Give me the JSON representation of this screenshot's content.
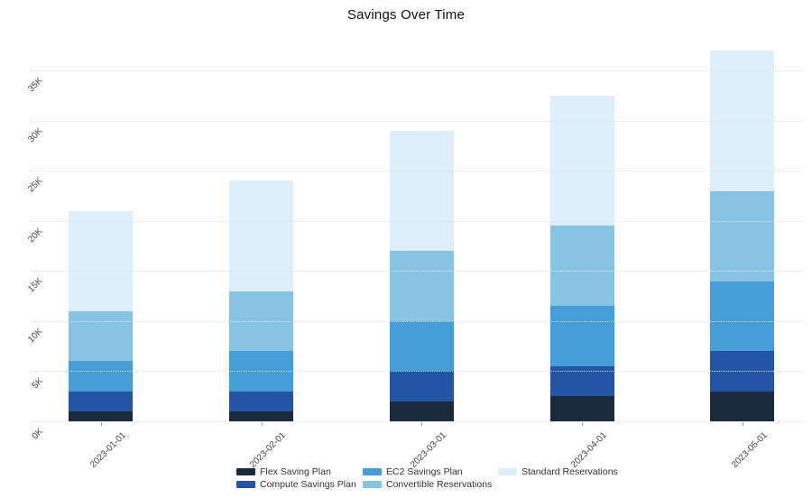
{
  "chart_data": {
    "type": "bar",
    "stacked": true,
    "title": "Savings Over Time",
    "xlabel": "",
    "ylabel": "",
    "categories": [
      "2023-01-01",
      "2023-02-01",
      "2023-03-01",
      "2023-04-01",
      "2023-05-01"
    ],
    "series": [
      {
        "name": "Flex Saving Plan",
        "color": "#1b2a3e",
        "values": [
          1000,
          1000,
          2000,
          2500,
          3000
        ]
      },
      {
        "name": "Compute Savings Plan",
        "color": "#2256a4",
        "values": [
          2000,
          2000,
          3000,
          3000,
          4000
        ]
      },
      {
        "name": "EC2 Savings Plan",
        "color": "#469ed8",
        "values": [
          3000,
          4000,
          5000,
          6000,
          7000
        ]
      },
      {
        "name": "Convertible Reservations",
        "color": "#87c3e3",
        "values": [
          5000,
          6000,
          7000,
          8000,
          9000
        ]
      },
      {
        "name": "Standard Reservations",
        "color": "#deeffa",
        "values": [
          10000,
          11000,
          12000,
          13000,
          14000
        ]
      }
    ],
    "totals": [
      21000,
      24000,
      29000,
      32500,
      37000
    ],
    "y_ticks": [
      {
        "value": 0,
        "label": "0K"
      },
      {
        "value": 5000,
        "label": "5K"
      },
      {
        "value": 10000,
        "label": "10K"
      },
      {
        "value": 15000,
        "label": "15K"
      },
      {
        "value": 20000,
        "label": "20K"
      },
      {
        "value": 25000,
        "label": "25K"
      },
      {
        "value": 30000,
        "label": "30K"
      },
      {
        "value": 35000,
        "label": "35K"
      }
    ],
    "ylim": [
      0,
      38800
    ],
    "grid": "horizontal-dotted",
    "grid_color": "#dfdfdf",
    "tick_angle": -45,
    "legend_position": "bottom"
  }
}
